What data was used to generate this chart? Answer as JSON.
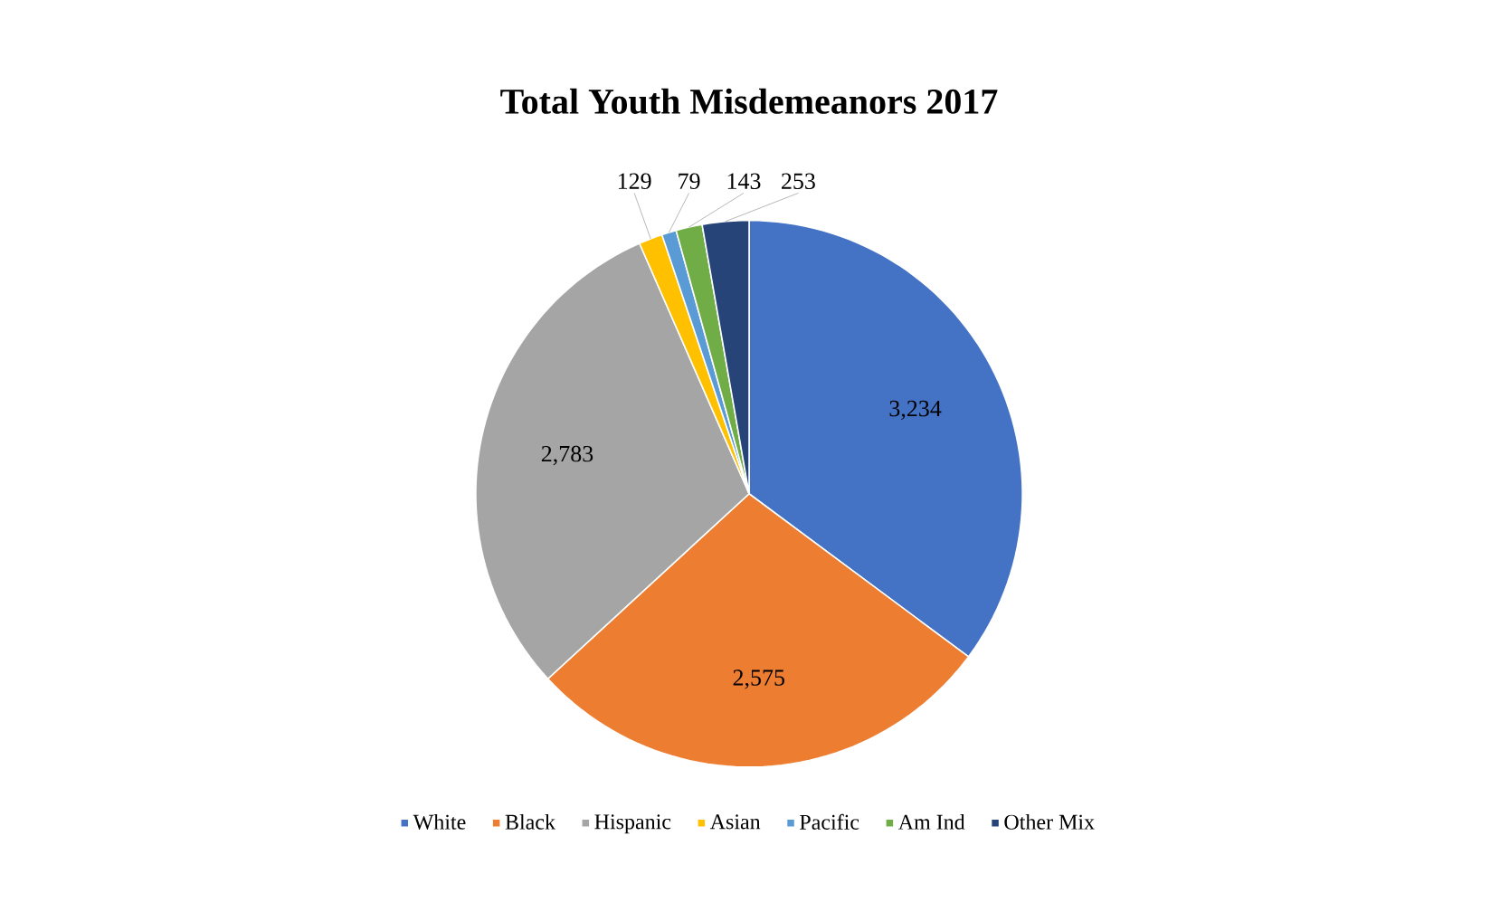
{
  "chart_data": {
    "type": "pie",
    "title": "Total Youth Misdemeanors 2017",
    "categories": [
      "White",
      "Black",
      "Hispanic",
      "Asian",
      "Pacific",
      "Am Ind",
      "Other Mix"
    ],
    "values": [
      3234,
      2575,
      2783,
      129,
      79,
      143,
      253
    ],
    "colors": [
      "#4472c4",
      "#ed7d31",
      "#a5a5a5",
      "#ffc000",
      "#5b9bd5",
      "#70ad47",
      "#264478"
    ],
    "value_labels": [
      "3,234",
      "2,575",
      "2,783",
      "129",
      "79",
      "143",
      "253"
    ],
    "legend": "bottom"
  }
}
